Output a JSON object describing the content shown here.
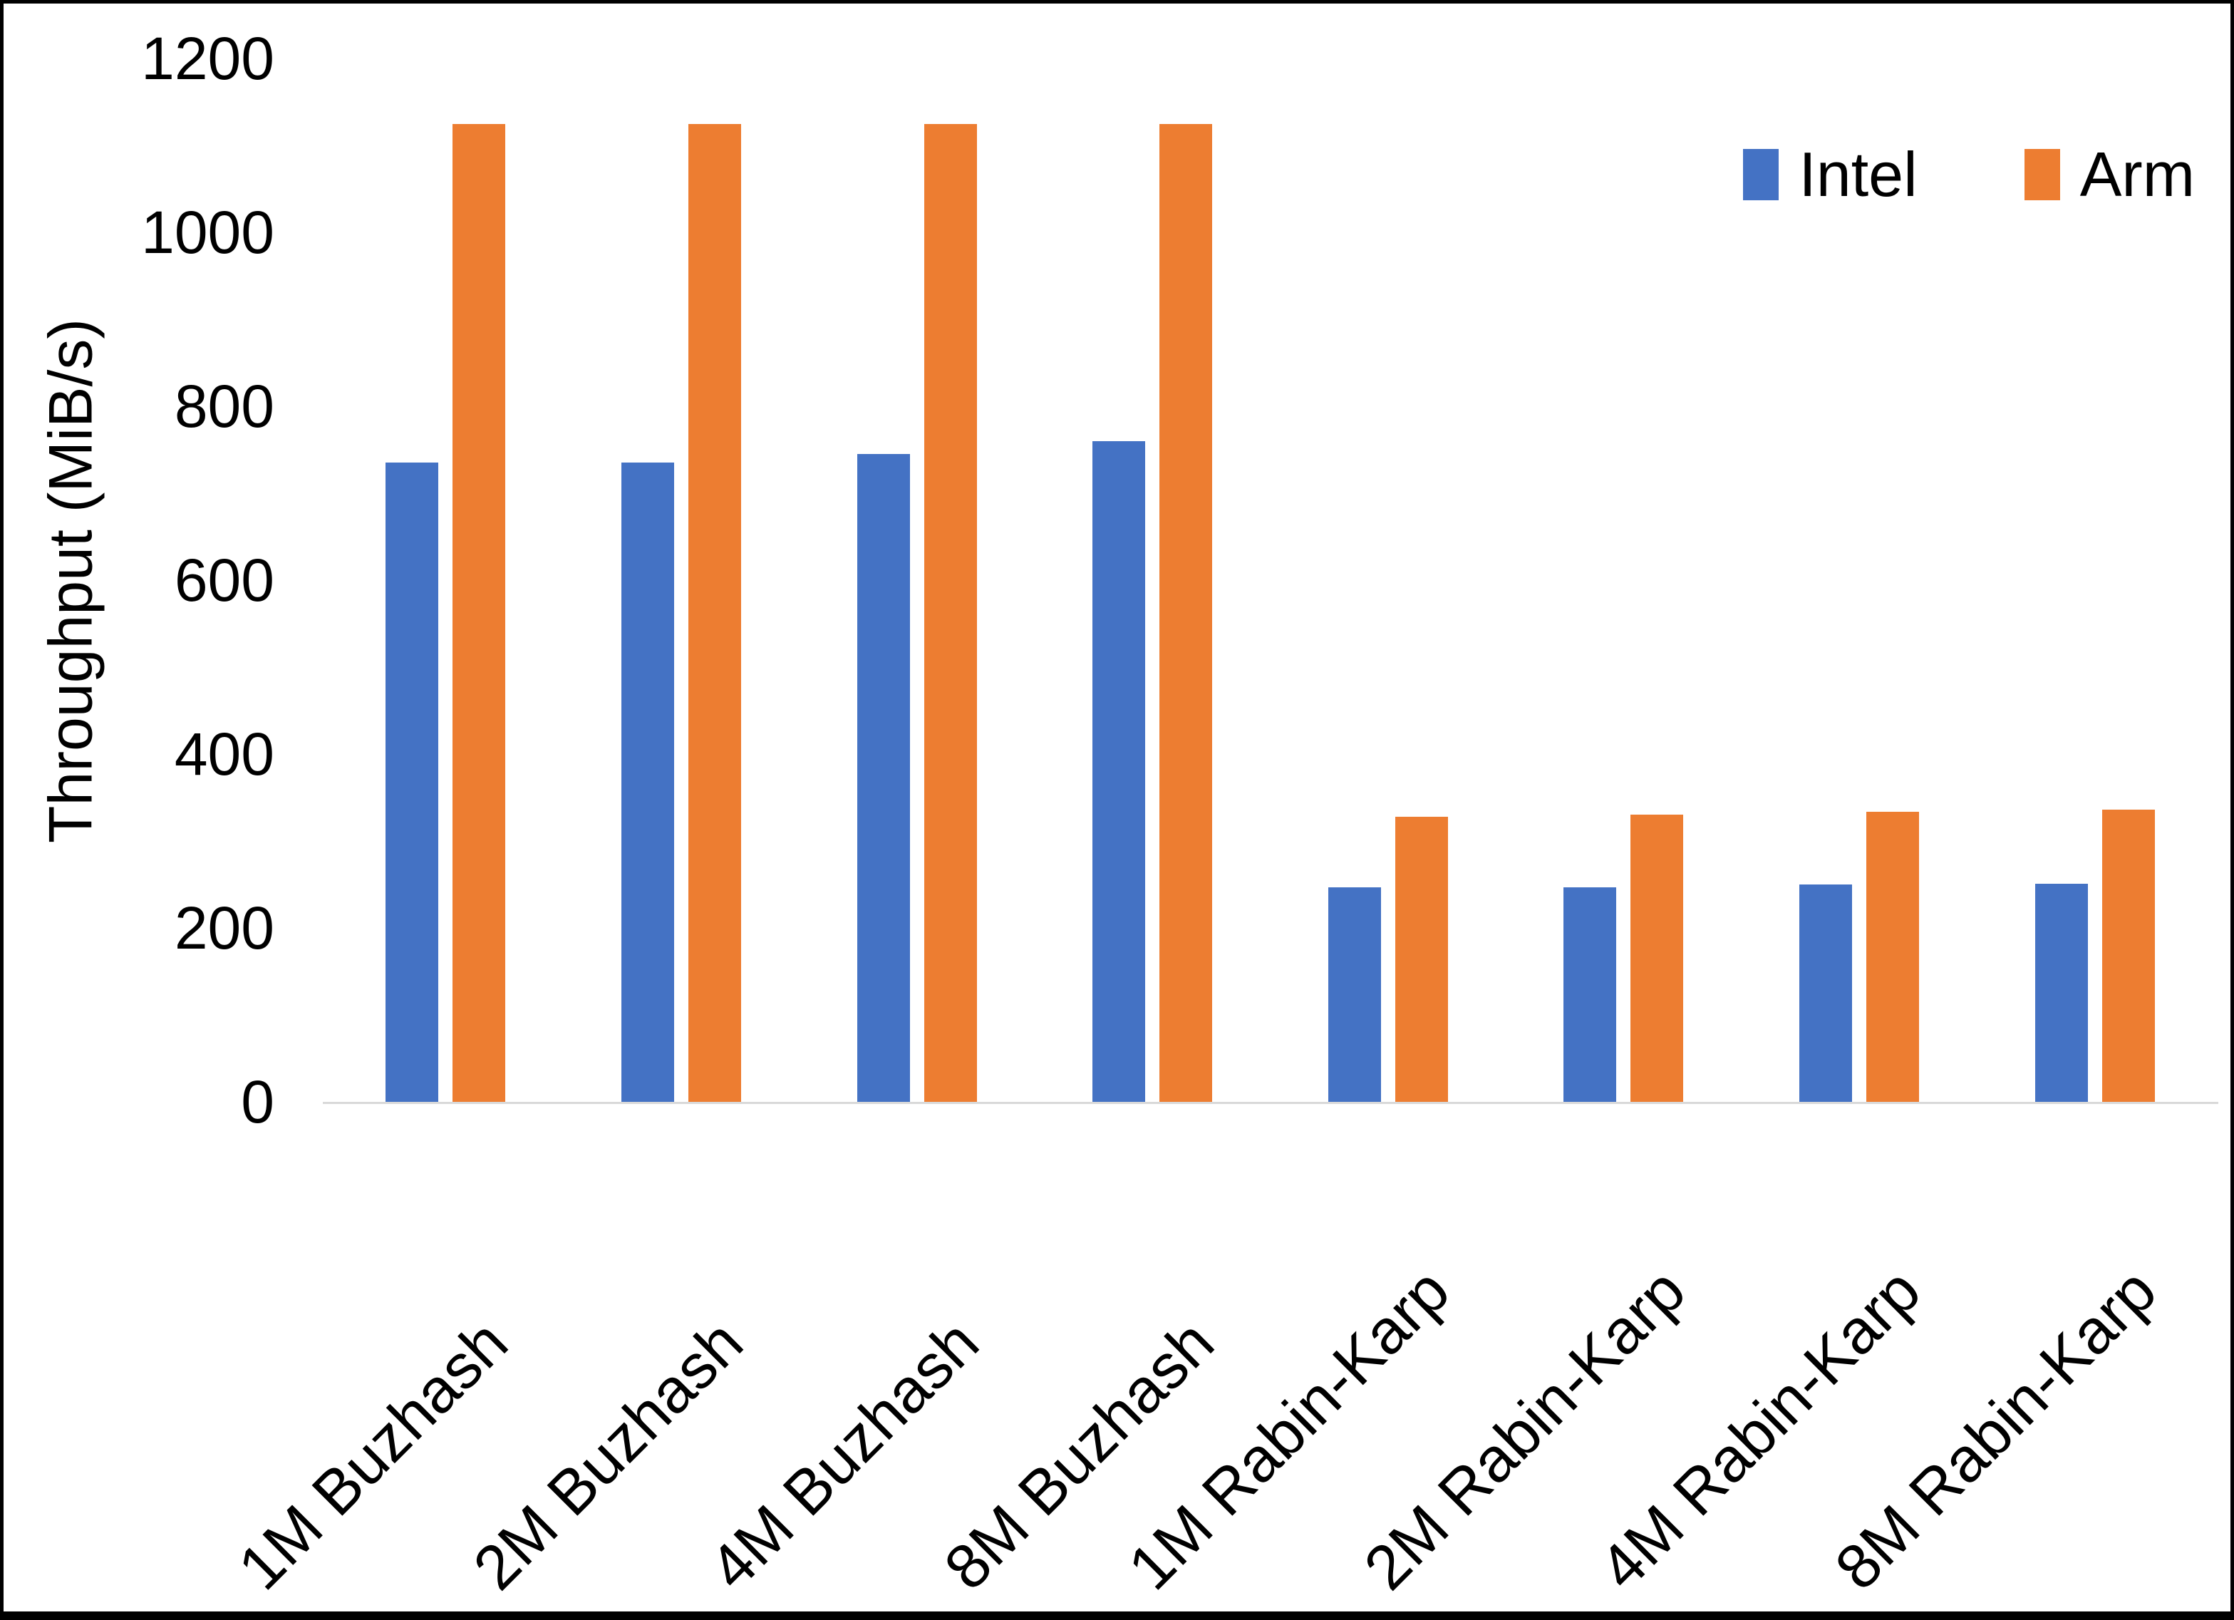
{
  "figure": {
    "background": "#ffffff",
    "frame_color": "#000000",
    "axis_line_color": "#d9d9d9",
    "text_color": "#000000"
  },
  "legend": {
    "items": [
      {
        "label": "Intel",
        "color": "#4472C4"
      },
      {
        "label": "Arm",
        "color": "#ED7D31"
      }
    ]
  },
  "chart_data": {
    "type": "bar",
    "title": "",
    "xlabel": "",
    "ylabel": "Throughput (MiB/s)",
    "ylim": [
      0,
      1200
    ],
    "yticks": [
      0,
      200,
      400,
      600,
      800,
      1000,
      1200
    ],
    "grid": false,
    "legend_position": "top-right",
    "categories": [
      "1M Buzhash",
      "2M Buzhash",
      "4M Buzhash",
      "8M Buzhash",
      "1M Rabin-Karp",
      "2M Rabin-Karp",
      "4M Rabin-Karp",
      "8M Rabin-Karp"
    ],
    "series": [
      {
        "name": "Intel",
        "color": "#4472C4",
        "values": [
          735,
          735,
          745,
          760,
          247,
          247,
          250,
          251
        ]
      },
      {
        "name": "Arm",
        "color": "#ED7D31",
        "values": [
          1125,
          1125,
          1125,
          1125,
          328,
          330,
          334,
          336
        ]
      }
    ]
  }
}
